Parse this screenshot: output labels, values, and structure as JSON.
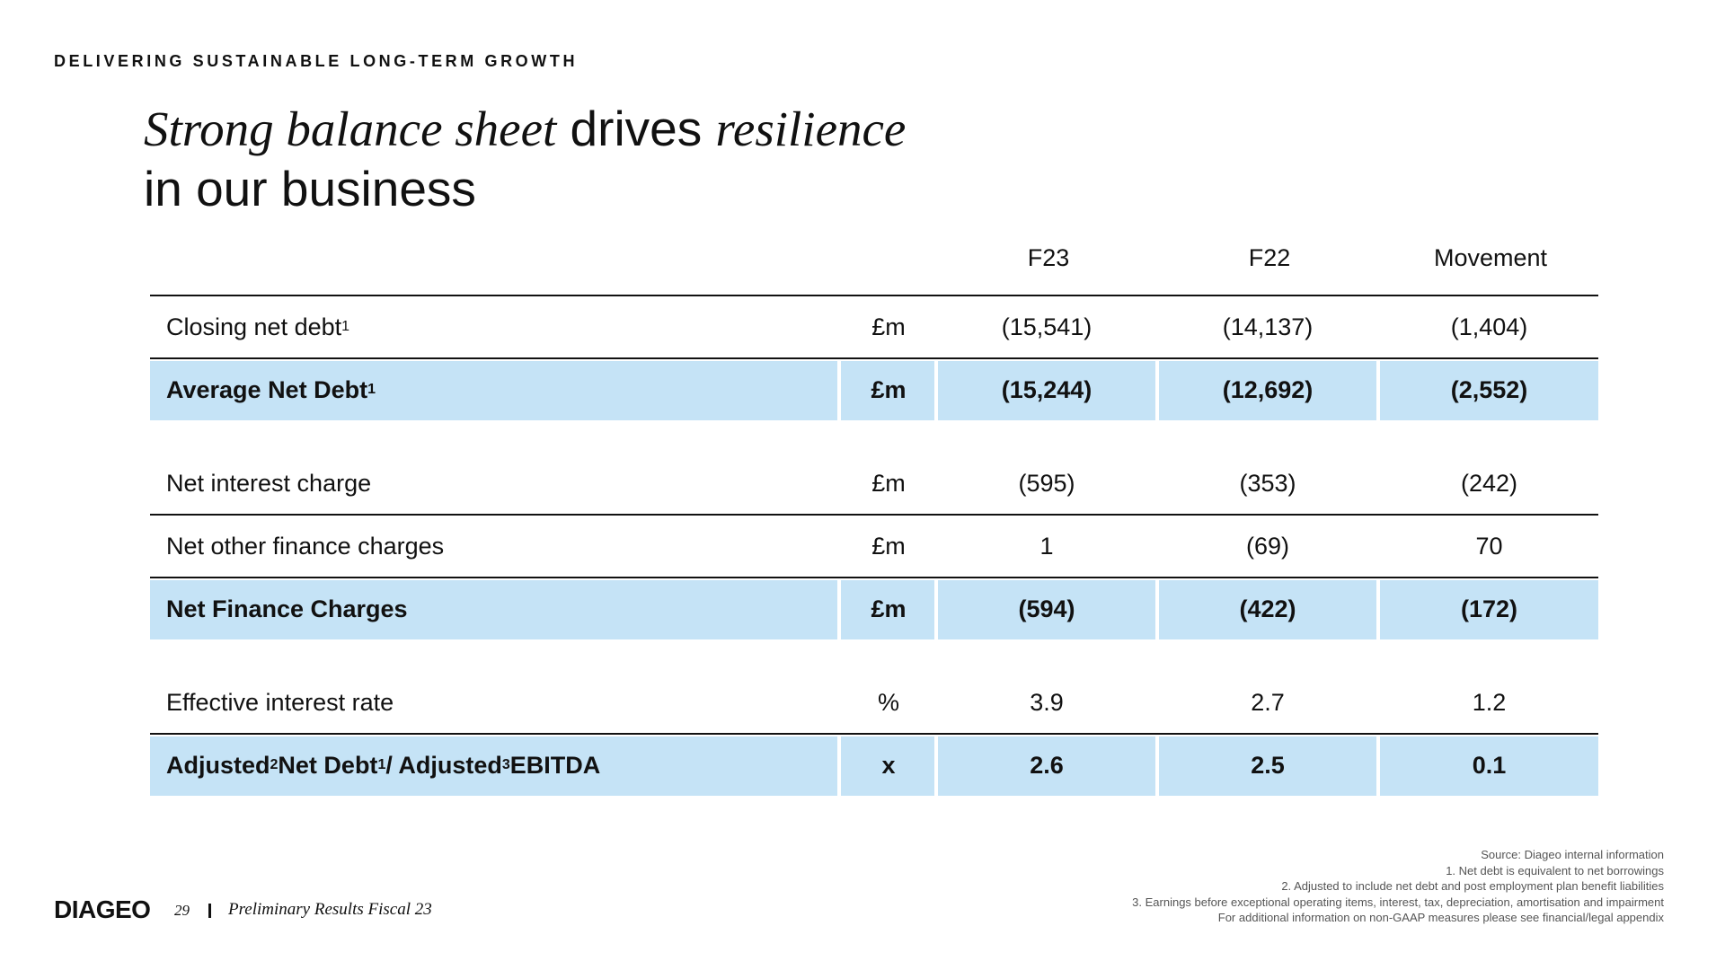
{
  "kicker": "DELIVERING SUSTAINABLE LONG-TERM GROWTH",
  "title": {
    "part1": "Strong balance sheet",
    "part2": " drives ",
    "part3": "resilience",
    "line2": "in our business"
  },
  "columns": {
    "f23": "F23",
    "f22": "F22",
    "movement": "Movement"
  },
  "rows": [
    {
      "label": "Closing net debt",
      "sup": "1",
      "unit": "£m",
      "f23": "(15,541)",
      "f22": "(14,137)",
      "movement": "(1,404)"
    },
    {
      "label": "Average Net Debt",
      "sup": "1",
      "unit": "£m",
      "f23": "(15,244)",
      "f22": "(12,692)",
      "movement": "(2,552)"
    },
    {
      "label": "Net interest charge",
      "unit": "£m",
      "f23": "(595)",
      "f22": "(353)",
      "movement": "(242)"
    },
    {
      "label": "Net other finance charges",
      "unit": "£m",
      "f23": "1",
      "f22": "(69)",
      "movement": "70"
    },
    {
      "label": "Net Finance Charges",
      "unit": "£m",
      "f23": "(594)",
      "f22": "(422)",
      "movement": "(172)"
    },
    {
      "label": "Effective interest rate",
      "unit": "%",
      "f23": "3.9",
      "f22": "2.7",
      "movement": "1.2"
    },
    {
      "label_a": "Adjusted",
      "sup_a": "2",
      "label_b": " Net Debt",
      "sup_b": "1",
      "label_c": " / Adjusted",
      "sup_c": "3",
      "label_d": " EBITDA",
      "unit": "x",
      "f23": "2.6",
      "f22": "2.5",
      "movement": "0.1"
    }
  ],
  "footer": {
    "logo": "DIAGEO",
    "page": "29",
    "title": "Preliminary Results Fiscal 23"
  },
  "notes": [
    "Source: Diageo internal information",
    "1. Net debt is equivalent to net borrowings",
    "2. Adjusted to include net debt and post employment plan benefit liabilities",
    "3. Earnings before exceptional operating items, interest, tax, depreciation, amortisation and impairment",
    "For additional information on non-GAAP measures please see financial/legal appendix"
  ]
}
